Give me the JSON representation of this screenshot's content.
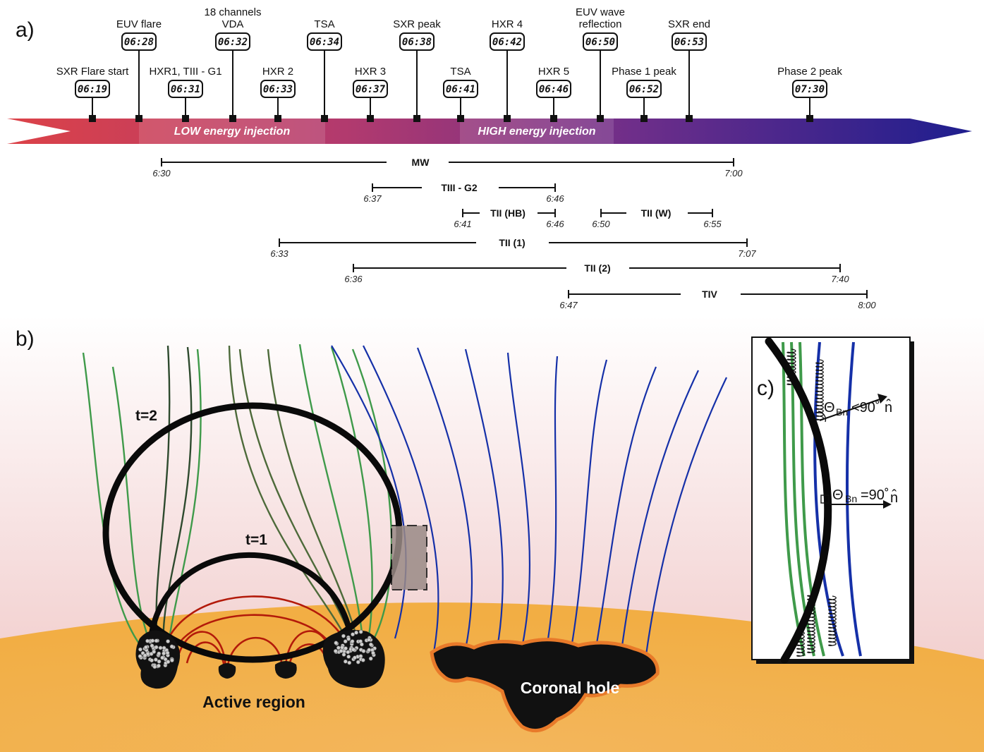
{
  "panel_a": {
    "label": "a)",
    "injections": [
      "LOW energy injection",
      "HIGH energy injection"
    ],
    "events": [
      {
        "label": "SXR Flare start",
        "time": "06:19",
        "row": "low"
      },
      {
        "label": "EUV flare",
        "time": "06:28",
        "row": "high"
      },
      {
        "label": "HXR1, TIII - G1",
        "time": "06:31",
        "row": "low"
      },
      {
        "label": "18 channels",
        "label2": "VDA",
        "time": "06:32",
        "row": "high"
      },
      {
        "label": "HXR 2",
        "time": "06:33",
        "row": "low"
      },
      {
        "label": "TSA",
        "time": "06:34",
        "row": "high"
      },
      {
        "label": "HXR 3",
        "time": "06:37",
        "row": "low"
      },
      {
        "label": "SXR peak",
        "time": "06:38",
        "row": "high"
      },
      {
        "label": "TSA",
        "time": "06:41",
        "row": "low"
      },
      {
        "label": "HXR 4",
        "time": "06:42",
        "row": "high"
      },
      {
        "label": "HXR 5",
        "time": "06:46",
        "row": "low"
      },
      {
        "label": "EUV wave",
        "label2": "reflection",
        "time": "06:50",
        "row": "high"
      },
      {
        "label": "Phase 1 peak",
        "time": "06:52",
        "row": "low"
      },
      {
        "label": "SXR end",
        "time": "06:53",
        "row": "high"
      },
      {
        "label": "Phase 2 peak",
        "time": "07:30",
        "row": "low"
      }
    ],
    "spans": [
      {
        "name": "MW",
        "start": "6:30",
        "end": "7:00"
      },
      {
        "name": "TIII - G2",
        "start": "6:37",
        "end": "6:46"
      },
      {
        "name": "TII (HB)",
        "start": "6:41",
        "end": "6:46"
      },
      {
        "name": "TII (W)",
        "start": "6:50",
        "end": "6:55"
      },
      {
        "name": "TII (1)",
        "start": "6:33",
        "end": "7:07"
      },
      {
        "name": "TII (2)",
        "start": "6:36",
        "end": "7:40"
      },
      {
        "name": "TIV",
        "start": "6:47",
        "end": "8:00"
      }
    ]
  },
  "panel_b": {
    "label": "b)",
    "active_region": "Active region",
    "coronal_hole": "Coronal hole",
    "front_t2": "t=2",
    "front_t1": "t=1"
  },
  "panel_c": {
    "label": "c)",
    "theta_sym": "Θ",
    "sub": "Bn",
    "oblique_rel": "<90˚",
    "perp_rel": "=90˚",
    "normal": "n̂"
  },
  "colors": {
    "arrow_start": "#d8404a",
    "arrow_end": "#1c1c8c",
    "sun": "#f2ae44",
    "closed_loops": "#b31a0a",
    "open_field_green": "#3f9a4a",
    "open_field_blue": "#1530a8",
    "shock_front": "#0a0a0a"
  }
}
